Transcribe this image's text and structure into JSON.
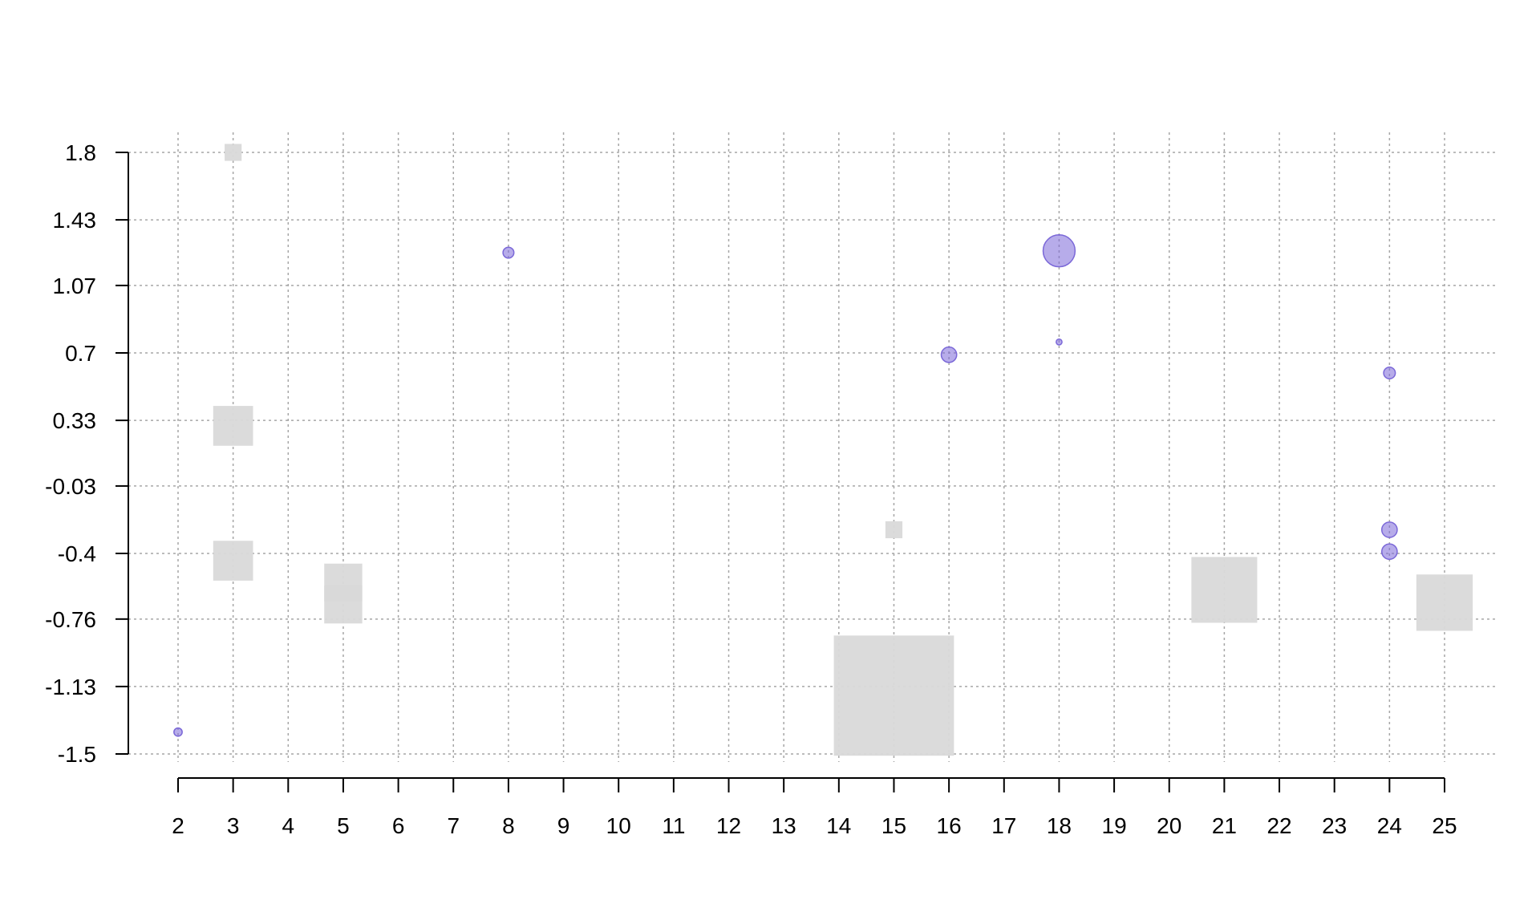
{
  "chart_data": {
    "type": "scatter",
    "title": "",
    "xlabel": "",
    "ylabel": "",
    "xlim": [
      2,
      25
    ],
    "ylim": [
      -1.5,
      1.8
    ],
    "grid": true,
    "x_ticks": [
      2,
      3,
      4,
      5,
      6,
      7,
      8,
      9,
      10,
      11,
      12,
      13,
      14,
      15,
      16,
      17,
      18,
      19,
      20,
      21,
      22,
      23,
      24,
      25
    ],
    "x_tick_labels": [
      "2",
      "3",
      "4",
      "5",
      "6",
      "7",
      "8",
      "9",
      "10",
      "11",
      "12",
      "13",
      "14",
      "15",
      "16",
      "17",
      "18",
      "19",
      "20",
      "21",
      "22",
      "23",
      "24",
      "25"
    ],
    "y_ticks": [
      1.8,
      1.43,
      1.07,
      0.7,
      0.33,
      -0.03,
      -0.4,
      -0.76,
      -1.13,
      -1.5
    ],
    "y_tick_labels": [
      "1.8",
      "1.43",
      "1.07",
      "0.7",
      "0.33",
      "-0.03",
      "-0.4",
      "-0.76",
      "-1.13",
      "-1.5"
    ],
    "series": [
      {
        "marker": "circle",
        "color": "#7b68d8",
        "points": [
          {
            "x": 2,
            "y": -1.38,
            "size": 0.2
          },
          {
            "x": 8,
            "y": 1.25,
            "size": 0.35
          },
          {
            "x": 16,
            "y": 0.69,
            "size": 0.7
          },
          {
            "x": 18,
            "y": 1.26,
            "size": 3.0
          },
          {
            "x": 18,
            "y": 0.76,
            "size": 0.1
          },
          {
            "x": 24,
            "y": 0.59,
            "size": 0.4
          },
          {
            "x": 24,
            "y": -0.27,
            "size": 0.7
          },
          {
            "x": 24,
            "y": -0.39,
            "size": 0.7
          }
        ]
      },
      {
        "marker": "square",
        "color": "#d9d9d9",
        "points": [
          {
            "x": 3,
            "y": 1.8,
            "size": 0.1
          },
          {
            "x": 3,
            "y": 0.3,
            "size": 0.55
          },
          {
            "x": 3,
            "y": -0.44,
            "size": 0.55
          },
          {
            "x": 5,
            "y": -0.56,
            "size": 0.5
          },
          {
            "x": 5,
            "y": -0.68,
            "size": 0.5
          },
          {
            "x": 15,
            "y": -0.27,
            "size": 0.1
          },
          {
            "x": 15,
            "y": -1.18,
            "size": 5.0
          },
          {
            "x": 21,
            "y": -0.6,
            "size": 1.5
          },
          {
            "x": 25,
            "y": -0.67,
            "size": 1.1
          }
        ]
      }
    ]
  }
}
